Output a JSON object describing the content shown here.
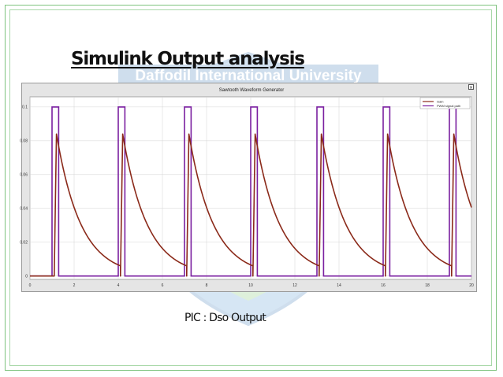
{
  "slide": {
    "title": "Simulink Output analysis",
    "caption": "PIC : Dso Output",
    "watermark_text": "Daffodil International University"
  },
  "scope": {
    "close_glyph": "×"
  },
  "chart_data": {
    "type": "line",
    "title": "Sawtooth Waveform Generator",
    "xlabel": "",
    "ylabel": "",
    "xlim": [
      0,
      20
    ],
    "ylim": [
      -0.002,
      0.106
    ],
    "xticks": [
      0,
      2,
      4,
      6,
      8,
      10,
      12,
      14,
      16,
      18,
      20
    ],
    "yticks": [
      0,
      0.02,
      0.04,
      0.06,
      0.08,
      0.1
    ],
    "grid": true,
    "legend_position": "top-right",
    "series": [
      {
        "name": "Gain",
        "color": "#8b2a1a",
        "period": 3,
        "start": 1.1,
        "peak_time_offset": 0.1,
        "peak": 0.084,
        "end": 0.006,
        "decay_span": 2.9
      },
      {
        "name": "PWM signal path",
        "color": "#7a1fa0",
        "period": 3,
        "high_start": 1.0,
        "high_duration": 0.3,
        "high": 0.1,
        "low": 0
      }
    ]
  }
}
